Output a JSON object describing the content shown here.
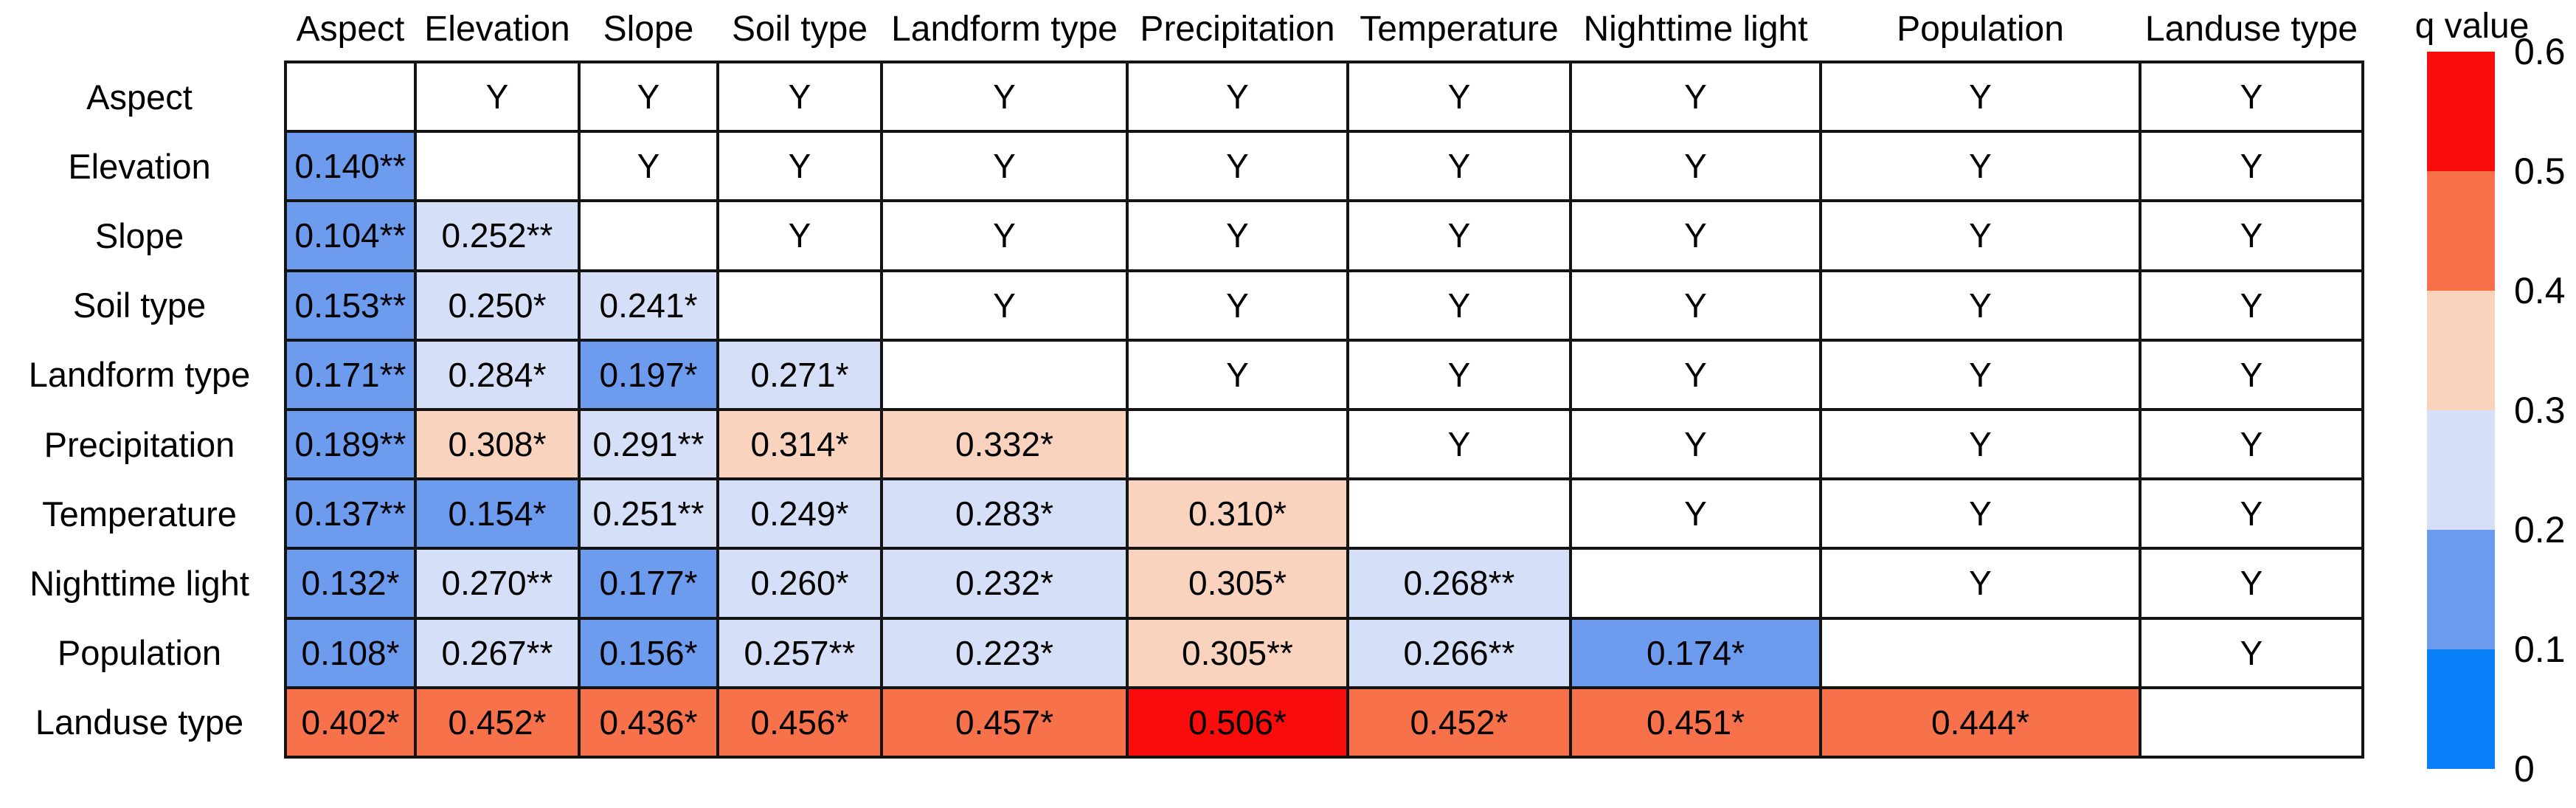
{
  "chart_data": {
    "type": "heatmap",
    "title": "",
    "description": "Geographical detector q-value interaction matrix: lower triangle shows q values with significance stars, upper triangle shows Y flags",
    "variables": [
      "Aspect",
      "Elevation",
      "Slope",
      "Soil type",
      "Landform type",
      "Precipitation",
      "Temperature",
      "Nighttime light",
      "Population",
      "Landuse type"
    ],
    "upper_triangle_symbol": "Y",
    "matrix": [
      [
        "",
        "Y",
        "Y",
        "Y",
        "Y",
        "Y",
        "Y",
        "Y",
        "Y",
        "Y"
      ],
      [
        "0.140**",
        "",
        "Y",
        "Y",
        "Y",
        "Y",
        "Y",
        "Y",
        "Y",
        "Y"
      ],
      [
        "0.104**",
        "0.252**",
        "",
        "Y",
        "Y",
        "Y",
        "Y",
        "Y",
        "Y",
        "Y"
      ],
      [
        "0.153**",
        "0.250*",
        "0.241*",
        "",
        "Y",
        "Y",
        "Y",
        "Y",
        "Y",
        "Y"
      ],
      [
        "0.171**",
        "0.284*",
        "0.197*",
        "0.271*",
        "",
        "Y",
        "Y",
        "Y",
        "Y",
        "Y"
      ],
      [
        "0.189**",
        "0.308*",
        "0.291**",
        "0.314*",
        "0.332*",
        "",
        "Y",
        "Y",
        "Y",
        "Y"
      ],
      [
        "0.137**",
        "0.154*",
        "0.251**",
        "0.249*",
        "0.283*",
        "0.310*",
        "",
        "Y",
        "Y",
        "Y"
      ],
      [
        "0.132*",
        "0.270**",
        "0.177*",
        "0.260*",
        "0.232*",
        "0.305*",
        "0.268**",
        "",
        "Y",
        "Y"
      ],
      [
        "0.108*",
        "0.267**",
        "0.156*",
        "0.257**",
        "0.223*",
        "0.305**",
        "0.266**",
        "0.174*",
        "",
        "Y"
      ],
      [
        "0.402*",
        "0.452*",
        "0.436*",
        "0.456*",
        "0.457*",
        "0.506*",
        "0.452*",
        "0.451*",
        "0.444*",
        ""
      ]
    ],
    "values": [
      [
        null,
        null,
        null,
        null,
        null,
        null,
        null,
        null,
        null,
        null
      ],
      [
        0.14,
        null,
        null,
        null,
        null,
        null,
        null,
        null,
        null,
        null
      ],
      [
        0.104,
        0.252,
        null,
        null,
        null,
        null,
        null,
        null,
        null,
        null
      ],
      [
        0.153,
        0.25,
        0.241,
        null,
        null,
        null,
        null,
        null,
        null,
        null
      ],
      [
        0.171,
        0.284,
        0.197,
        0.271,
        null,
        null,
        null,
        null,
        null,
        null
      ],
      [
        0.189,
        0.308,
        0.291,
        0.314,
        0.332,
        null,
        null,
        null,
        null,
        null
      ],
      [
        0.137,
        0.154,
        0.251,
        0.249,
        0.283,
        0.31,
        null,
        null,
        null,
        null
      ],
      [
        0.132,
        0.27,
        0.177,
        0.26,
        0.232,
        0.305,
        0.268,
        null,
        null,
        null
      ],
      [
        0.108,
        0.267,
        0.156,
        0.257,
        0.223,
        0.305,
        0.266,
        0.174,
        null,
        null
      ],
      [
        0.402,
        0.452,
        0.436,
        0.456,
        0.457,
        0.506,
        0.452,
        0.451,
        0.444,
        null
      ]
    ],
    "colorbar": {
      "title": "q value",
      "ticks": [
        "0.6",
        "0.5",
        "0.4",
        "0.3",
        "0.2",
        "0.1",
        "0"
      ],
      "range": [
        0,
        0.6
      ],
      "bands": [
        {
          "range": [
            0.5,
            0.6
          ],
          "color": "#F90C0C"
        },
        {
          "range": [
            0.4,
            0.5
          ],
          "color": "#F7714B"
        },
        {
          "range": [
            0.3,
            0.4
          ],
          "color": "#F9D3BE"
        },
        {
          "range": [
            0.2,
            0.3
          ],
          "color": "#D5DFF7"
        },
        {
          "range": [
            0.1,
            0.2
          ],
          "color": "#6D9CEF"
        },
        {
          "range": [
            0.0,
            0.1
          ],
          "color": "#0980F7"
        }
      ]
    },
    "layout_hints": {
      "grid_line_color": "#141414",
      "cell_background_default": "#ffffff",
      "legend_position": "right"
    }
  }
}
